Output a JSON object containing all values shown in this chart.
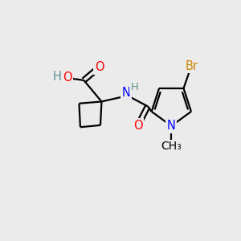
{
  "bg_color": "#ebebeb",
  "atom_colors": {
    "C": "#000000",
    "O": "#ff0000",
    "N": "#0000ff",
    "H": "#5f9090",
    "Br": "#cc8800"
  },
  "bond_color": "#000000",
  "bond_width": 1.6,
  "font_size": 10.5,
  "fig_size": [
    3.0,
    3.0
  ],
  "dpi": 100
}
